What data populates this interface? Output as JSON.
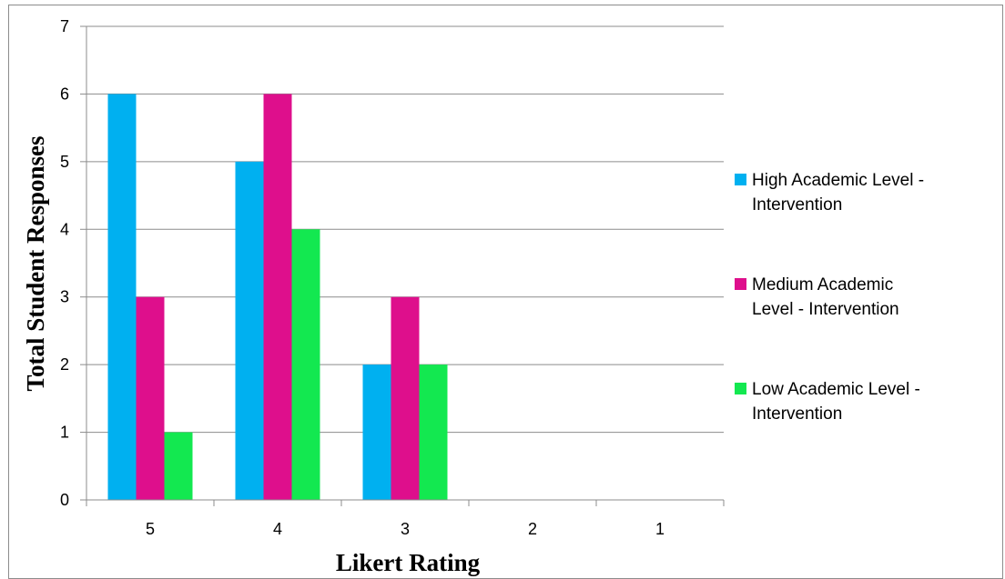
{
  "chart_data": {
    "type": "bar",
    "title": "",
    "xlabel": "Likert Rating",
    "ylabel": "Total Student Responses",
    "categories": [
      "5",
      "4",
      "3",
      "2",
      "1"
    ],
    "ylim": [
      0,
      7
    ],
    "yticks": [
      "0",
      "1",
      "2",
      "3",
      "4",
      "5",
      "6",
      "7"
    ],
    "grid": true,
    "legend_position": "right",
    "series": [
      {
        "name": "High Academic Level - Intervention",
        "legend_lines": [
          "High Academic Level -",
          "Intervention"
        ],
        "color": "#00B0F0",
        "values": [
          6,
          5,
          2,
          0,
          0
        ]
      },
      {
        "name": "Medium Academic Level - Intervention",
        "legend_lines": [
          "Medium Academic",
          "Level - Intervention"
        ],
        "color": "#DE0F8C",
        "values": [
          3,
          6,
          3,
          0,
          0
        ]
      },
      {
        "name": "Low Academic Level - Intervention",
        "legend_lines": [
          "Low Academic Level -",
          "Intervention"
        ],
        "color": "#13E850",
        "values": [
          1,
          4,
          2,
          0,
          0
        ]
      }
    ]
  }
}
